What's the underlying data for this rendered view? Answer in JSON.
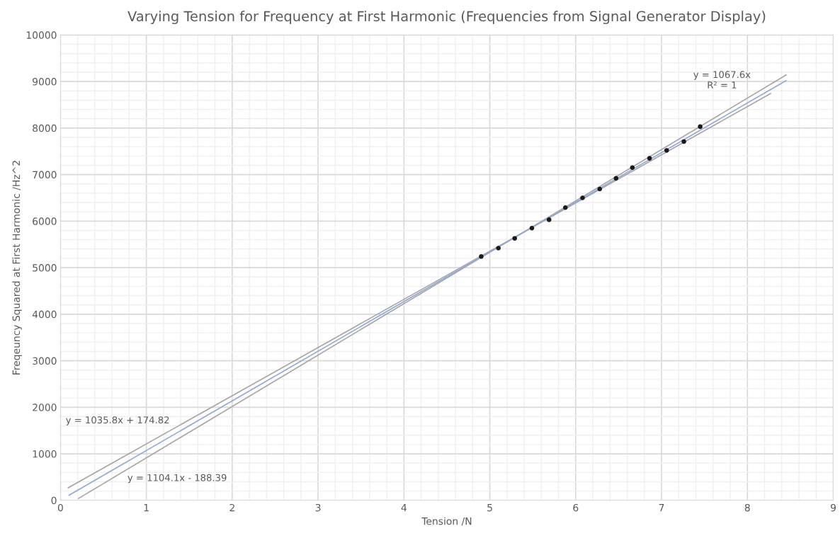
{
  "chart_data": {
    "type": "scatter",
    "title": "Varying Tension for Frequency at First Harmonic (Frequencies from Signal Generator Display)",
    "xlabel": "Tension /N",
    "ylabel": "Freqeuncy Squared at First Harmonic /Hz^2",
    "xlim": [
      0,
      9
    ],
    "xticks": [
      0,
      1,
      2,
      3,
      4,
      5,
      6,
      7,
      8,
      9
    ],
    "ylim": [
      0,
      10000
    ],
    "yticks": [
      0,
      1000,
      2000,
      3000,
      4000,
      5000,
      6000,
      7000,
      8000,
      9000,
      10000
    ],
    "grid": true,
    "legend": false,
    "series": [
      {
        "type": "line",
        "color": "#a6a6a6",
        "marker": "none",
        "line_style": "solid",
        "x": [
          0.09,
          8.27
        ],
        "values": [
          270,
          8740
        ]
      },
      {
        "type": "line",
        "color": "#a6a6a6",
        "marker": "none",
        "line_style": "solid",
        "x": [
          0.21,
          8.45
        ],
        "values": [
          40,
          9140
        ]
      },
      {
        "type": "line",
        "color": "#8faadc",
        "marker": "none",
        "line_style": "solid",
        "x": [
          0.1,
          8.45
        ],
        "values": [
          110,
          9020
        ]
      },
      {
        "color": "#1a1a1a",
        "marker": "circle",
        "x": [
          4.9,
          5.1,
          5.29,
          5.49,
          5.69,
          5.88,
          6.08,
          6.28,
          6.47,
          6.66,
          6.86,
          7.06,
          7.26,
          7.45
        ],
        "values": [
          5240,
          5420,
          5630,
          5850,
          6030,
          6290,
          6500,
          6690,
          6920,
          7150,
          7350,
          7520,
          7710,
          8030
        ]
      }
    ],
    "annotations": [
      "y = 1067.6x\nR² = 1",
      "y = 1035.8x + 174.82",
      "y = 1104.1x - 188.39"
    ]
  }
}
